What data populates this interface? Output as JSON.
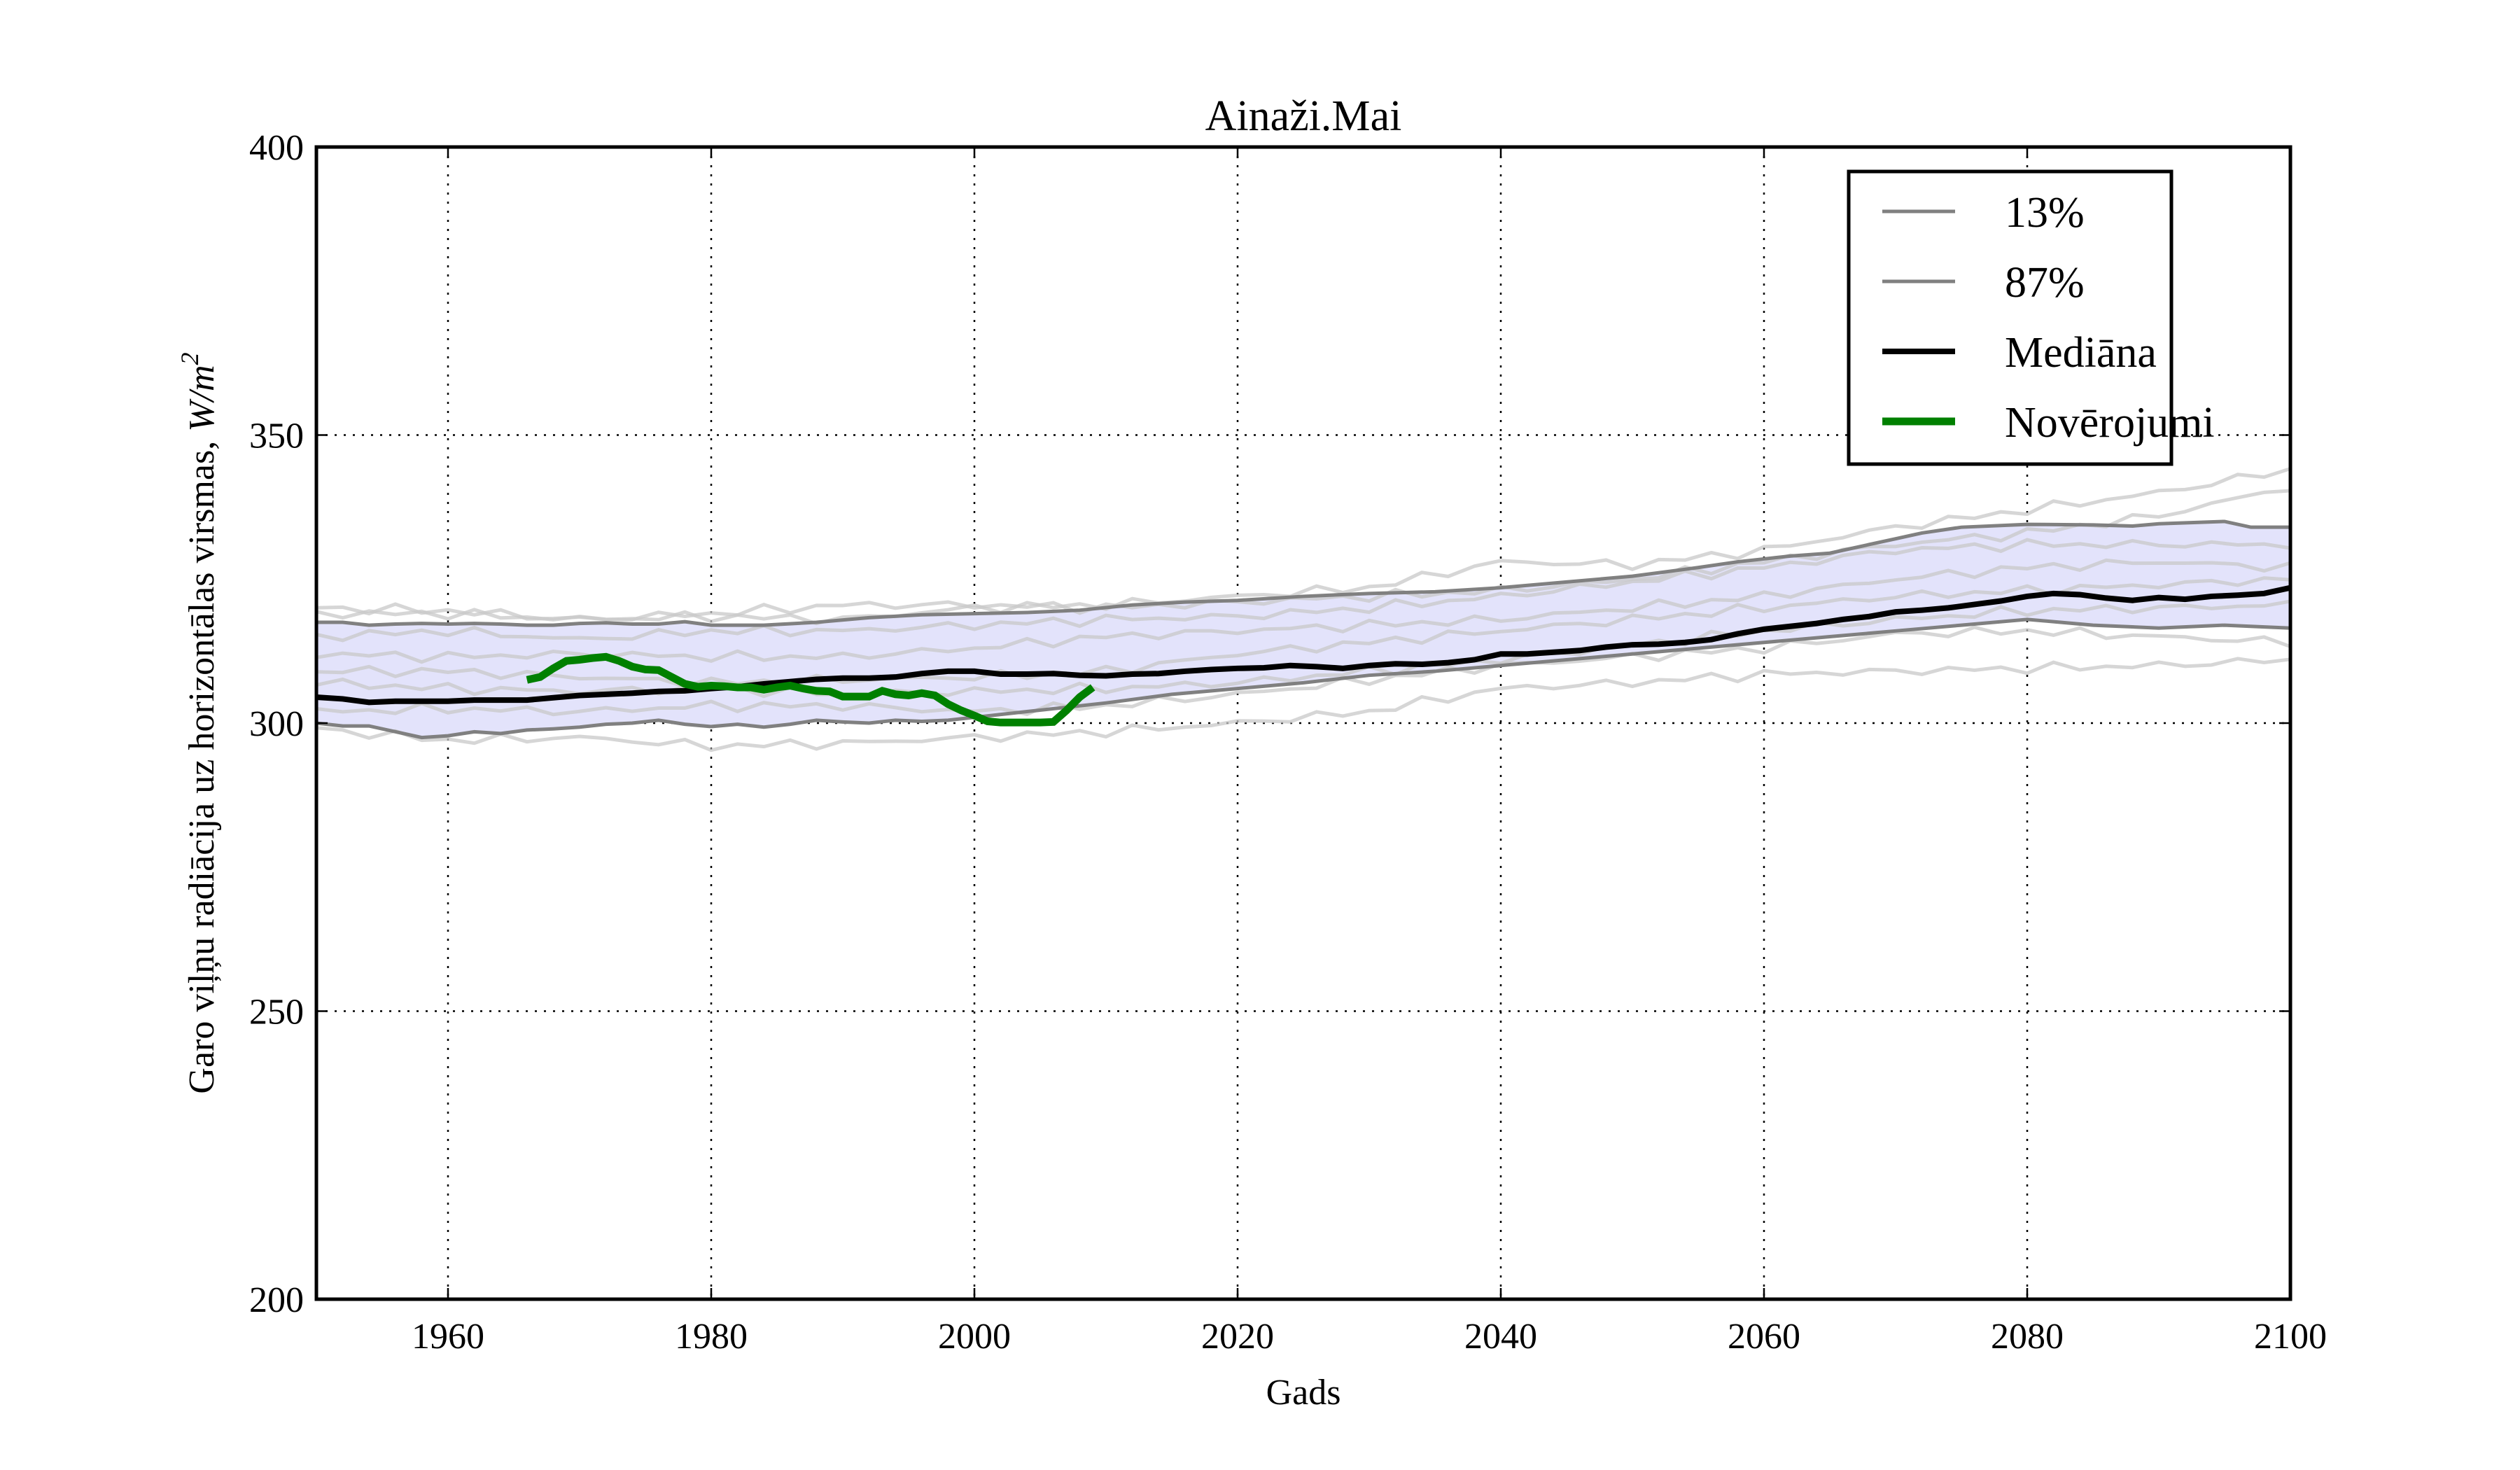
{
  "chart_data": {
    "type": "line",
    "title": "Ainaži.Mai",
    "xlabel": "Gads",
    "ylabel": "Garo viļņu radiācija uz horizontālas virsmas, W/m²",
    "ylabel_parts": {
      "text": "Garo viļņu radiācija uz horizontālas virsmas, ",
      "unit": "W/m",
      "unit_sup": "2"
    },
    "xlim": [
      1950,
      2100
    ],
    "ylim": [
      200,
      400
    ],
    "xticks": [
      1960,
      1980,
      2000,
      2020,
      2040,
      2060,
      2080,
      2100
    ],
    "yticks": [
      200,
      250,
      300,
      350,
      400
    ],
    "grid": true,
    "legend_position": "top-right",
    "legend": [
      {
        "label": "13%",
        "color": "#808080",
        "style": "thin"
      },
      {
        "label": "87%",
        "color": "#808080",
        "style": "thin"
      },
      {
        "label": "Mediāna",
        "color": "#000000",
        "style": "thick"
      },
      {
        "label": "Novērojumi",
        "color": "#008000",
        "style": "thicker"
      }
    ],
    "band_fill_color": "#e3e3fb",
    "series": [
      {
        "name": "13%",
        "color": "#808080",
        "x": [
          1950,
          1952,
          1954,
          1956,
          1958,
          1960,
          1962,
          1964,
          1966,
          1968,
          1970,
          1972,
          1974,
          1976,
          1978,
          1980,
          1982,
          1984,
          1986,
          1988,
          1990,
          1992,
          1994,
          1996,
          1998,
          2000,
          2002,
          2004,
          2006,
          2008,
          2010,
          2015,
          2020,
          2025,
          2030,
          2035,
          2040,
          2045,
          2050,
          2055,
          2060,
          2065,
          2070,
          2075,
          2080,
          2085,
          2090,
          2095,
          2100
        ],
        "y": [
          300,
          299.5,
          299.5,
          298.5,
          297.5,
          297.8,
          298.5,
          298.2,
          298.8,
          299,
          299.3,
          299.8,
          300,
          300.5,
          299.8,
          299.4,
          299.8,
          299.3,
          299.8,
          300.5,
          300.2,
          300,
          300.5,
          300.3,
          300.5,
          301,
          301.5,
          302,
          302.5,
          303,
          303.5,
          305,
          306,
          307,
          308.3,
          309,
          310,
          311,
          312,
          313,
          314,
          315,
          316,
          317,
          318,
          317,
          316.5,
          317,
          316.5
        ]
      },
      {
        "name": "87%",
        "color": "#808080",
        "x": [
          1950,
          1952,
          1954,
          1956,
          1958,
          1960,
          1962,
          1964,
          1966,
          1968,
          1970,
          1972,
          1974,
          1976,
          1978,
          1980,
          1984,
          1988,
          1992,
          1996,
          2000,
          2004,
          2008,
          2012,
          2016,
          2020,
          2025,
          2030,
          2035,
          2040,
          2045,
          2050,
          2055,
          2058,
          2060,
          2062,
          2065,
          2068,
          2070,
          2072,
          2075,
          2080,
          2085,
          2088,
          2090,
          2095,
          2097,
          2100
        ],
        "y": [
          317.5,
          317.5,
          317,
          317.2,
          317.3,
          317.2,
          317.3,
          317.2,
          317,
          317,
          317.3,
          317.4,
          317.2,
          317.2,
          317.6,
          317,
          317,
          317.5,
          318.3,
          318.8,
          319,
          319.2,
          319.6,
          320.5,
          321,
          321.3,
          322,
          322.5,
          322.8,
          323.5,
          324.5,
          325.5,
          327,
          328,
          328.5,
          329,
          329.5,
          331,
          332,
          333,
          334,
          334.5,
          334.4,
          334.2,
          334.6,
          335,
          334,
          334
        ]
      },
      {
        "name": "Mediāna",
        "color": "#000000",
        "x": [
          1950,
          1952,
          1954,
          1956,
          1958,
          1960,
          1962,
          1964,
          1966,
          1968,
          1970,
          1972,
          1974,
          1976,
          1978,
          1980,
          1982,
          1984,
          1986,
          1988,
          1990,
          1992,
          1994,
          1996,
          1998,
          2000,
          2002,
          2004,
          2006,
          2008,
          2010,
          2012,
          2014,
          2016,
          2018,
          2020,
          2022,
          2024,
          2026,
          2028,
          2030,
          2032,
          2034,
          2036,
          2038,
          2040,
          2042,
          2044,
          2046,
          2048,
          2050,
          2052,
          2054,
          2056,
          2058,
          2060,
          2062,
          2064,
          2066,
          2068,
          2070,
          2072,
          2074,
          2076,
          2078,
          2080,
          2082,
          2084,
          2086,
          2088,
          2090,
          2092,
          2094,
          2096,
          2098,
          2100
        ],
        "y": [
          304.5,
          304.2,
          303.6,
          303.8,
          303.8,
          303.8,
          304,
          304,
          304,
          304.4,
          304.8,
          305,
          305.2,
          305.5,
          305.6,
          306,
          306.3,
          306.8,
          307.2,
          307.6,
          307.8,
          307.8,
          308,
          308.6,
          309,
          309,
          308.5,
          308.5,
          308.6,
          308.3,
          308.2,
          308.5,
          308.6,
          309,
          309.3,
          309.5,
          309.6,
          310,
          309.8,
          309.5,
          310,
          310.3,
          310.2,
          310.5,
          311,
          312,
          312,
          312.3,
          312.6,
          313.2,
          313.6,
          313.7,
          314,
          314.5,
          315.5,
          316.3,
          316.8,
          317.3,
          318,
          318.5,
          319.3,
          319.6,
          320,
          320.6,
          321.2,
          322,
          322.5,
          322.3,
          321.7,
          321.3,
          321.8,
          321.5,
          322,
          322.2,
          322.5,
          323.5
        ]
      },
      {
        "name": "Novērojumi",
        "color": "#008000",
        "x": [
          1966,
          1967,
          1968,
          1969,
          1970,
          1971,
          1972,
          1973,
          1974,
          1975,
          1976,
          1977,
          1978,
          1979,
          1980,
          1981,
          1982,
          1983,
          1984,
          1985,
          1986,
          1987,
          1988,
          1989,
          1990,
          1991,
          1992,
          1993,
          1994,
          1995,
          1996,
          1997,
          1998,
          1999,
          2000,
          2001,
          2002,
          2003,
          2004,
          2005,
          2006,
          2007,
          2008,
          2009
        ],
        "y": [
          307.5,
          308,
          309.5,
          310.8,
          311,
          311.3,
          311.5,
          310.8,
          309.8,
          309.3,
          309.2,
          308,
          306.8,
          306.3,
          306.5,
          306.4,
          306.2,
          306.2,
          305.8,
          306.2,
          306.5,
          306,
          305.6,
          305.5,
          304.6,
          304.6,
          304.6,
          305.6,
          305,
          304.8,
          305.2,
          304.8,
          303.3,
          302.2,
          301.3,
          300.3,
          300.1,
          300.1,
          300.1,
          300.1,
          300.2,
          302.2,
          304.5,
          306.2
        ]
      }
    ],
    "ensemble_members_color": "#c8c8c8",
    "ensemble_members": [
      {
        "x": [
          1950,
          1960,
          1970,
          1980,
          1990,
          2000,
          2010,
          2020,
          2030,
          2040,
          2050,
          2060,
          2070,
          2080,
          2090,
          2100
        ],
        "y": [
          320,
          319.5,
          318,
          318.5,
          318,
          320,
          320.5,
          322,
          323.5,
          328,
          327.5,
          330,
          334,
          337,
          340,
          344
        ]
      },
      {
        "x": [
          1950,
          1960,
          1970,
          1980,
          1990,
          2000,
          2010,
          2020,
          2030,
          2040,
          2050,
          2060,
          2070,
          2080,
          2090,
          2100
        ],
        "y": [
          315,
          316,
          314.5,
          316,
          316,
          317,
          318,
          318.5,
          320,
          322,
          324.5,
          327,
          330,
          331,
          331,
          331
        ]
      },
      {
        "x": [
          1950,
          1960,
          1970,
          1980,
          1990,
          2000,
          2010,
          2020,
          2030,
          2040,
          2050,
          2060,
          2070,
          2080,
          2090,
          2100
        ],
        "y": [
          312,
          311.5,
          312,
          311.5,
          311.5,
          313,
          315,
          316,
          317,
          318,
          320,
          322,
          325,
          327,
          328,
          327
        ]
      },
      {
        "x": [
          1950,
          1960,
          1970,
          1980,
          1990,
          2000,
          2010,
          2020,
          2030,
          2040,
          2050,
          2060,
          2070,
          2080,
          2090,
          2100
        ],
        "y": [
          309,
          309,
          308,
          307,
          307.5,
          308,
          309,
          312,
          314,
          316,
          318,
          320,
          322,
          323,
          324,
          325
        ]
      },
      {
        "x": [
          1950,
          1960,
          1970,
          1980,
          1990,
          2000,
          2010,
          2020,
          2030,
          2040,
          2050,
          2060,
          2070,
          2080,
          2090,
          2100
        ],
        "y": [
          307,
          306,
          305.5,
          306,
          305,
          305.5,
          306,
          307,
          309,
          311,
          313.5,
          316,
          318,
          319.5,
          320,
          320.5
        ]
      },
      {
        "x": [
          1950,
          1960,
          1970,
          1980,
          1990,
          2000,
          2010,
          2020,
          2030,
          2040,
          2050,
          2060,
          2070,
          2080,
          2090,
          2100
        ],
        "y": [
          302,
          302.5,
          302,
          303,
          303,
          302,
          303,
          305,
          307.5,
          310,
          311.5,
          313,
          315.5,
          316,
          315,
          314
        ]
      },
      {
        "x": [
          1950,
          1960,
          1970,
          1980,
          1990,
          2000,
          2010,
          2020,
          2030,
          2040,
          2050,
          2060,
          2070,
          2080,
          2090,
          2100
        ],
        "y": [
          299,
          297,
          297.5,
          296,
          296.5,
          297.5,
          298.5,
          300,
          302,
          306,
          307,
          308.5,
          309,
          309.5,
          310,
          311
        ]
      },
      {
        "x": [
          1950,
          1960,
          1970,
          1980,
          1990,
          2000,
          2010,
          2020,
          2030,
          2040,
          2050,
          2060,
          2070,
          2080,
          2090,
          2100
        ],
        "y": [
          319,
          319,
          318,
          319,
          320.5,
          320.5,
          320,
          321,
          322,
          323,
          325,
          328,
          331,
          333,
          336,
          341
        ]
      }
    ]
  }
}
